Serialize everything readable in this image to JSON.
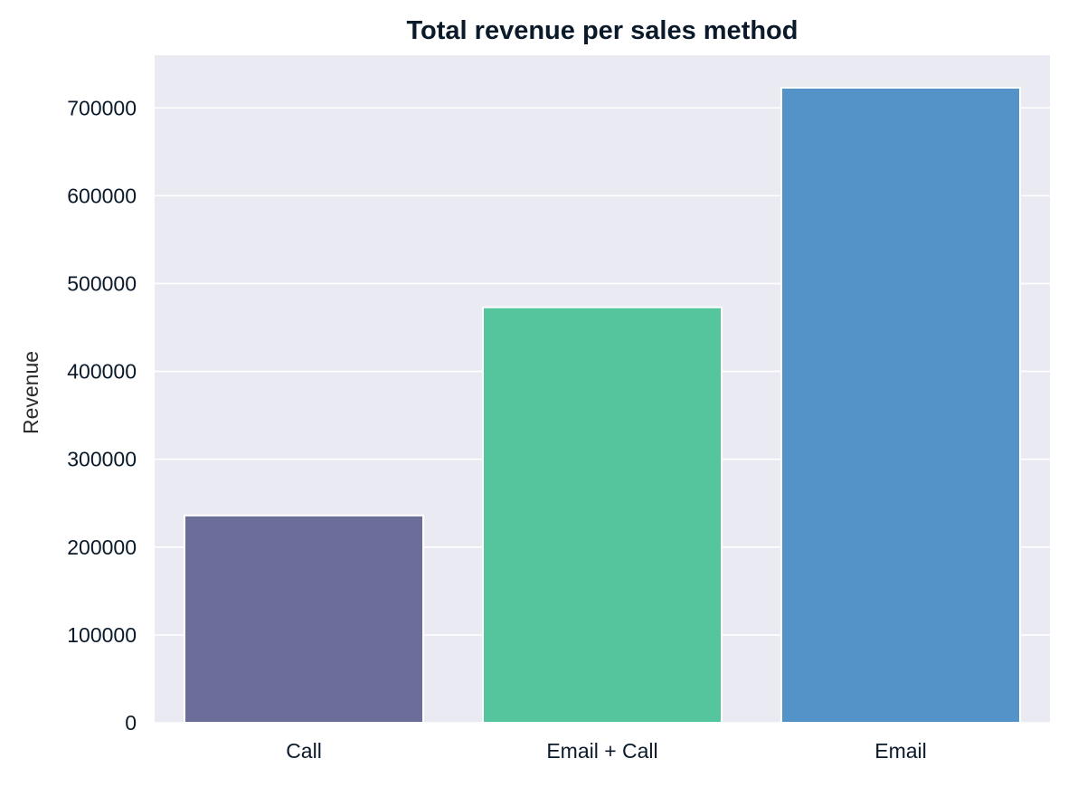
{
  "chart_data": {
    "type": "bar",
    "title": "Total revenue per sales method",
    "xlabel": "",
    "ylabel": "Revenue",
    "categories": [
      "Call",
      "Email + Call",
      "Email"
    ],
    "values": [
      236000,
      473000,
      723000
    ],
    "colors": [
      "#6c6e9a",
      "#55c59d",
      "#5493c8"
    ],
    "ylim": [
      0,
      760000
    ],
    "yticks": [
      0,
      100000,
      200000,
      300000,
      400000,
      500000,
      600000,
      700000
    ],
    "ytick_labels": [
      "0",
      "100000",
      "200000",
      "300000",
      "400000",
      "500000",
      "600000",
      "700000"
    ],
    "grid": true,
    "style": {
      "plot_background": "#eaeaf2",
      "grid_color": "#ffffff",
      "bar_edge_color": "#ffffff"
    }
  }
}
